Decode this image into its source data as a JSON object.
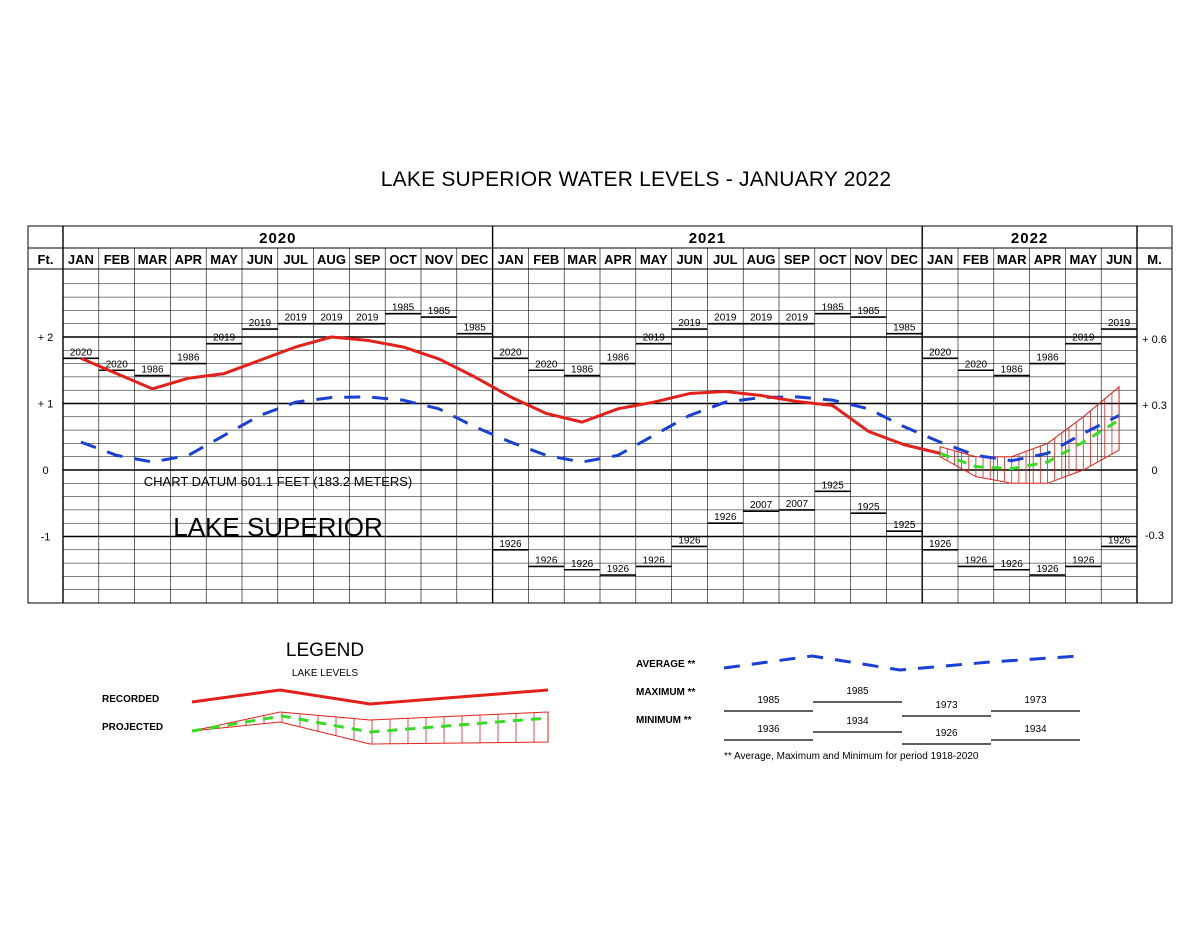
{
  "chart_data": {
    "type": "line",
    "title": "LAKE SUPERIOR WATER LEVELS - JANUARY 2022",
    "years": [
      {
        "label": "2020",
        "months": 12
      },
      {
        "label": "2021",
        "months": 12
      },
      {
        "label": "2022",
        "months": 6
      }
    ],
    "months": [
      "JAN",
      "FEB",
      "MAR",
      "APR",
      "MAY",
      "JUN",
      "JUL",
      "AUG",
      "SEP",
      "OCT",
      "NOV",
      "DEC",
      "JAN",
      "FEB",
      "MAR",
      "APR",
      "MAY",
      "JUN",
      "JUL",
      "AUG",
      "SEP",
      "OCT",
      "NOV",
      "DEC",
      "JAN",
      "FEB",
      "MAR",
      "APR",
      "MAY",
      "JUN"
    ],
    "left_unit": "Ft.",
    "right_unit": "M.",
    "left_ticks": [
      {
        "v": 2,
        "t": "+ 2"
      },
      {
        "v": 1,
        "t": "+ 1"
      },
      {
        "v": 0,
        "t": "0"
      },
      {
        "v": -1,
        "t": "-1"
      }
    ],
    "right_ticks": [
      {
        "v": 1.97,
        "t": "+ 0.6"
      },
      {
        "v": 0.98,
        "t": "+ 0.3"
      },
      {
        "v": 0,
        "t": "0"
      },
      {
        "v": -0.98,
        "t": "-0.3"
      }
    ],
    "ylim": [
      -2.0,
      3.0
    ],
    "datum_label": "CHART DATUM  601.1 FEET (183.2 METERS)",
    "lake_label": "LAKE SUPERIOR",
    "series": [
      {
        "name": "RECORDED",
        "color": "#e3201b",
        "style": "solid",
        "x": [
          0,
          1,
          2,
          3,
          4,
          5,
          6,
          7,
          8,
          9,
          10,
          11,
          12,
          13,
          14,
          15,
          16,
          17,
          18,
          19,
          20,
          21,
          22,
          23,
          24
        ],
        "values": [
          1.68,
          1.45,
          1.22,
          1.38,
          1.45,
          1.65,
          1.85,
          2.0,
          1.95,
          1.85,
          1.67,
          1.4,
          1.1,
          0.85,
          0.72,
          0.92,
          1.02,
          1.15,
          1.18,
          1.12,
          1.03,
          0.97,
          0.58,
          0.38,
          0.25
        ]
      },
      {
        "name": "AVERAGE",
        "color": "#1a3fd6",
        "style": "dashed",
        "x": [
          0,
          1,
          2,
          3,
          4,
          5,
          6,
          7,
          8,
          9,
          10,
          11,
          12,
          13,
          14,
          15,
          16,
          17,
          18,
          19,
          20,
          21,
          22,
          23,
          24,
          25,
          26,
          27,
          28,
          29
        ],
        "values": [
          0.42,
          0.22,
          0.12,
          0.22,
          0.52,
          0.82,
          1.02,
          1.09,
          1.1,
          1.05,
          0.92,
          0.65,
          0.42,
          0.22,
          0.12,
          0.22,
          0.52,
          0.82,
          1.02,
          1.09,
          1.1,
          1.05,
          0.92,
          0.65,
          0.42,
          0.22,
          0.14,
          0.25,
          0.55,
          0.82
        ]
      },
      {
        "name": "PROJECTED",
        "color": "#33dd22",
        "style": "dashed",
        "x": [
          24,
          25,
          26,
          27,
          28,
          29
        ],
        "values": [
          0.25,
          0.05,
          0.02,
          0.12,
          0.42,
          0.75
        ]
      },
      {
        "name": "PROJECTED MAX",
        "color": "#e3201b",
        "style": "thin",
        "x": [
          24,
          25,
          26,
          27,
          28,
          29
        ],
        "values": [
          0.35,
          0.2,
          0.2,
          0.4,
          0.8,
          1.25
        ]
      },
      {
        "name": "PROJECTED MIN",
        "color": "#e3201b",
        "style": "thin",
        "x": [
          24,
          25,
          26,
          27,
          28,
          29
        ],
        "values": [
          0.2,
          -0.1,
          -0.2,
          -0.2,
          0.0,
          0.3
        ]
      }
    ],
    "maximums": [
      {
        "value": 1.68,
        "year": "2020"
      },
      {
        "value": 1.5,
        "year": "2020"
      },
      {
        "value": 1.42,
        "year": "1986"
      },
      {
        "value": 1.6,
        "year": "1986"
      },
      {
        "value": 1.9,
        "year": "2019"
      },
      {
        "value": 2.12,
        "year": "2019"
      },
      {
        "value": 2.2,
        "year": "2019"
      },
      {
        "value": 2.2,
        "year": "2019"
      },
      {
        "value": 2.2,
        "year": "2019"
      },
      {
        "value": 2.35,
        "year": "1985"
      },
      {
        "value": 2.3,
        "year": "1985"
      },
      {
        "value": 2.05,
        "year": "1985"
      },
      {
        "value": 1.68,
        "year": "2020"
      },
      {
        "value": 1.5,
        "year": "2020"
      },
      {
        "value": 1.42,
        "year": "1986"
      },
      {
        "value": 1.6,
        "year": "1986"
      },
      {
        "value": 1.9,
        "year": "2019"
      },
      {
        "value": 2.12,
        "year": "2019"
      },
      {
        "value": 2.2,
        "year": "2019"
      },
      {
        "value": 2.2,
        "year": "2019"
      },
      {
        "value": 2.2,
        "year": "2019"
      },
      {
        "value": 2.35,
        "year": "1985"
      },
      {
        "value": 2.3,
        "year": "1985"
      },
      {
        "value": 2.05,
        "year": "1985"
      },
      {
        "value": 1.68,
        "year": "2020"
      },
      {
        "value": 1.5,
        "year": "2020"
      },
      {
        "value": 1.42,
        "year": "1986"
      },
      {
        "value": 1.6,
        "year": "1986"
      },
      {
        "value": 1.9,
        "year": "2019"
      },
      {
        "value": 2.12,
        "year": "2019"
      }
    ],
    "minimums": [
      null,
      null,
      null,
      null,
      null,
      null,
      null,
      null,
      null,
      null,
      null,
      null,
      {
        "value": -1.2,
        "year": "1926"
      },
      {
        "value": -1.45,
        "year": "1926"
      },
      {
        "value": -1.5,
        "year": "1926"
      },
      {
        "value": -1.58,
        "year": "1926"
      },
      {
        "value": -1.45,
        "year": "1926"
      },
      {
        "value": -1.15,
        "year": "1926"
      },
      {
        "value": -0.8,
        "year": "1926"
      },
      {
        "value": -0.62,
        "year": "2007"
      },
      {
        "value": -0.6,
        "year": "2007"
      },
      {
        "value": -0.32,
        "year": "1925"
      },
      {
        "value": -0.65,
        "year": "1925"
      },
      {
        "value": -0.92,
        "year": "1925"
      },
      {
        "value": -1.2,
        "year": "1926"
      },
      {
        "value": -1.45,
        "year": "1926"
      },
      {
        "value": -1.5,
        "year": "1926"
      },
      {
        "value": -1.58,
        "year": "1926"
      },
      {
        "value": -1.45,
        "year": "1926"
      },
      {
        "value": -1.15,
        "year": "1926"
      }
    ]
  },
  "legend": {
    "title": "LEGEND",
    "subtitle": "LAKE LEVELS",
    "recorded_label": "RECORDED",
    "projected_label": "PROJECTED",
    "average_label": "AVERAGE **",
    "maximum_label": "MAXIMUM **",
    "minimum_label": "MINIMUM **",
    "max_years": [
      "1985",
      "1985",
      "1973",
      "1973"
    ],
    "min_years": [
      "1936",
      "1934",
      "1926",
      "1934"
    ],
    "footnote": "** Average, Maximum and Minimum for period 1918-2020"
  },
  "colors": {
    "recorded": "#e3201b",
    "average": "#1a3fd6",
    "projected": "#33dd22"
  }
}
